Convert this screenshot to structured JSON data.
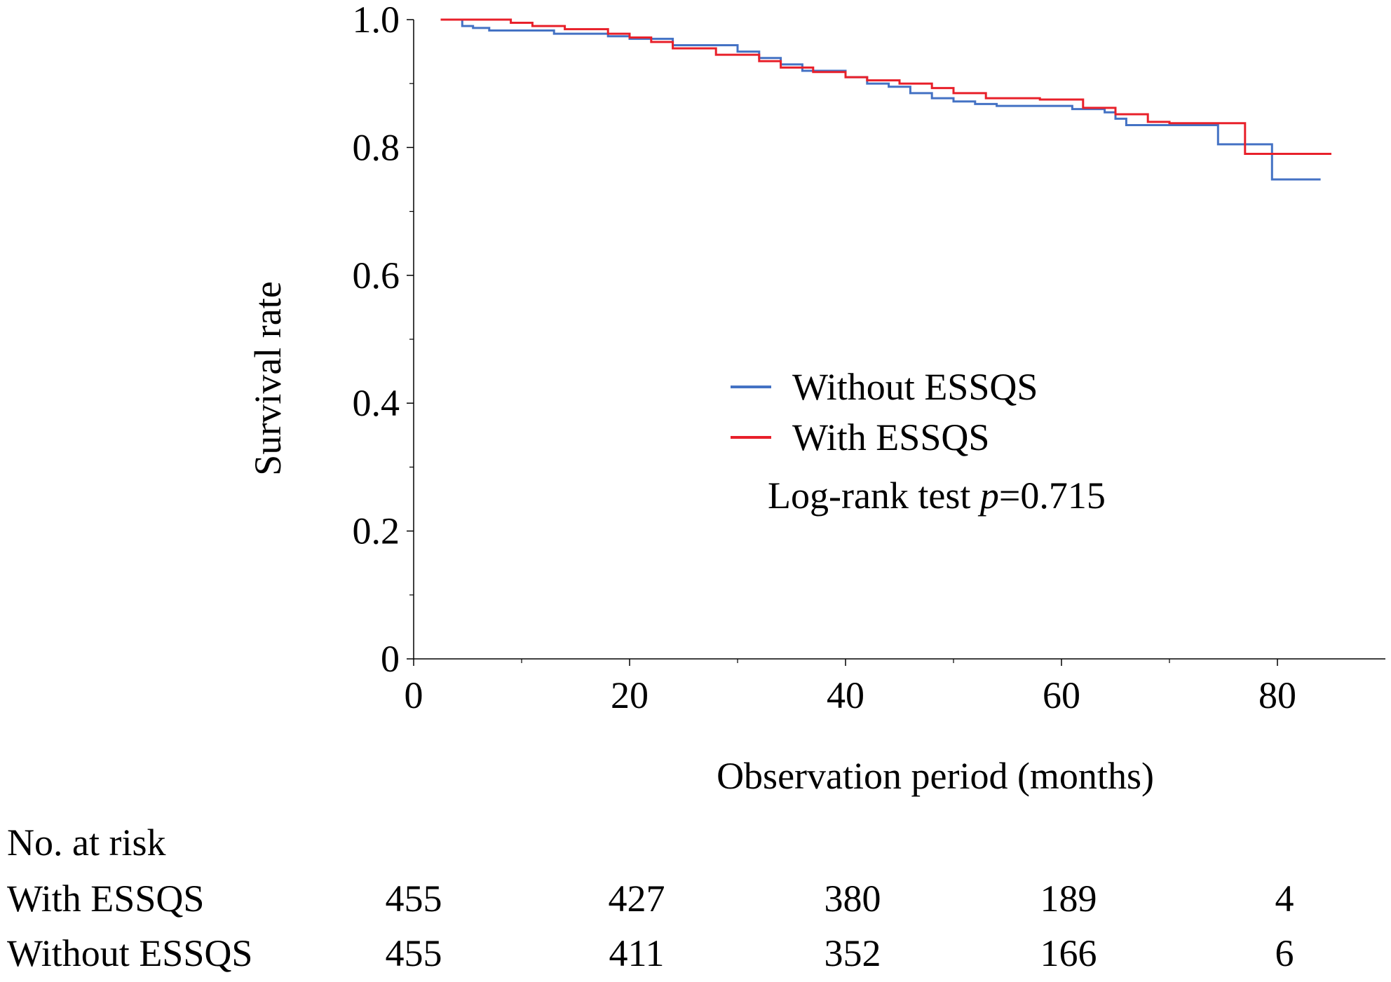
{
  "chart_data": {
    "type": "line",
    "step": true,
    "xlabel": "Observation period (months)",
    "ylabel": "Survival rate",
    "xlim": [
      0,
      90
    ],
    "ylim": [
      0,
      1.0
    ],
    "x_ticks": [
      0,
      20,
      40,
      60,
      80
    ],
    "y_ticks": [
      0,
      0.2,
      0.4,
      0.6,
      0.8,
      1.0
    ],
    "y_tick_labels": [
      "0",
      "0.2",
      "0.4",
      "0.6",
      "0.8",
      "1.0"
    ],
    "grid": false,
    "legend_position": "center-right",
    "series": [
      {
        "name": "Without ESSQS",
        "color": "#4472C4",
        "x": [
          2.5,
          4.5,
          5.5,
          7,
          13,
          18,
          20,
          24,
          30,
          32,
          34,
          36,
          40,
          42,
          44,
          46,
          48,
          50,
          52,
          54,
          61,
          64,
          65,
          66,
          74,
          74.5,
          79,
          79.5,
          84
        ],
        "y": [
          1.0,
          0.99,
          0.987,
          0.983,
          0.978,
          0.974,
          0.97,
          0.96,
          0.95,
          0.94,
          0.93,
          0.92,
          0.91,
          0.9,
          0.895,
          0.885,
          0.877,
          0.872,
          0.868,
          0.865,
          0.86,
          0.855,
          0.845,
          0.835,
          0.835,
          0.805,
          0.805,
          0.75,
          0.75
        ]
      },
      {
        "name": "With ESSQS",
        "color": "#E8202A",
        "x": [
          2.5,
          7,
          9,
          11,
          14,
          18,
          20,
          22,
          24,
          28,
          32,
          34,
          37,
          40,
          42,
          45,
          48,
          50,
          53,
          58,
          62,
          65,
          68,
          70,
          76.5,
          77,
          85
        ],
        "y": [
          1.0,
          1.0,
          0.995,
          0.99,
          0.985,
          0.978,
          0.972,
          0.965,
          0.955,
          0.945,
          0.935,
          0.925,
          0.918,
          0.91,
          0.905,
          0.9,
          0.893,
          0.885,
          0.877,
          0.875,
          0.862,
          0.852,
          0.84,
          0.838,
          0.838,
          0.79,
          0.79
        ]
      }
    ],
    "annotation": {
      "prefix": "Log-rank test ",
      "p_symbol": "p",
      "suffix": "=0.715"
    },
    "risk_table": {
      "title": "No. at risk",
      "rows": [
        {
          "label": "With ESSQS",
          "values": [
            "455",
            "427",
            "380",
            "189",
            "4"
          ]
        },
        {
          "label": "Without ESSQS",
          "values": [
            "455",
            "411",
            "352",
            "166",
            "6"
          ]
        }
      ]
    }
  }
}
